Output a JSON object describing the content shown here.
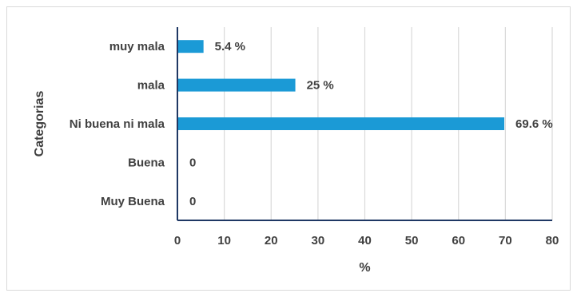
{
  "chart_data": {
    "type": "bar",
    "orientation": "horizontal",
    "categories": [
      "muy mala",
      "mala",
      "Ni buena ni mala",
      "Buena",
      "Muy Buena"
    ],
    "values": [
      5.4,
      25,
      69.6,
      0,
      0
    ],
    "data_labels": [
      "5.4 %",
      "25 %",
      "69.6 %",
      "0",
      "0"
    ],
    "xlabel": "%",
    "ylabel": "Categorias",
    "xlim": [
      0,
      80
    ],
    "xticks": [
      "0",
      "10",
      "20",
      "30",
      "40",
      "50",
      "60",
      "70",
      "80"
    ],
    "grid": "vertical",
    "legend": "none",
    "bar_color": "#1b9ad6",
    "grid_color": "#d9d9d9",
    "axis_color": "#1f3864"
  }
}
